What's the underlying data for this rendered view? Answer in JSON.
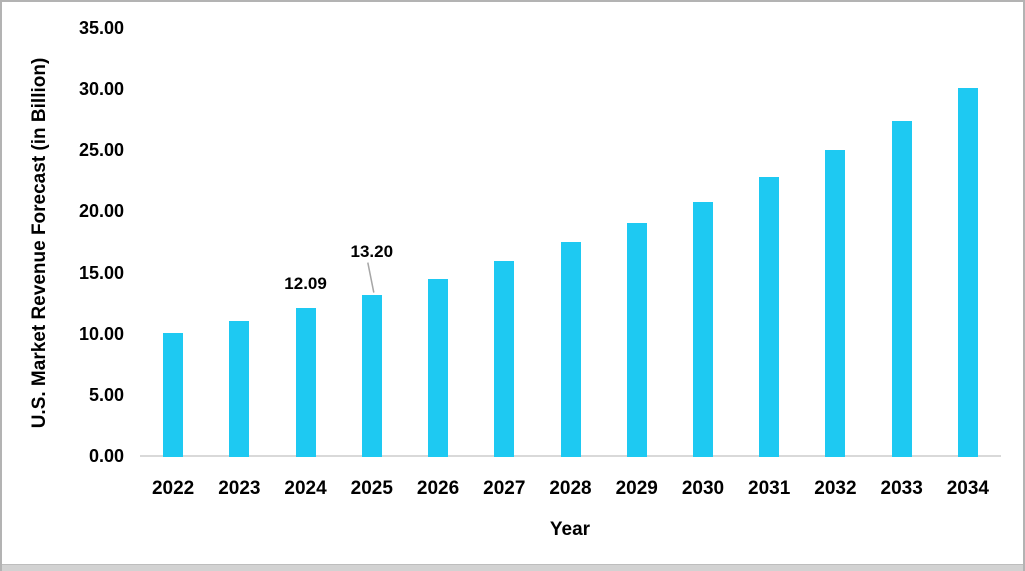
{
  "window": {
    "background": "#ffffff",
    "border_color": "#b3b3b3",
    "bottom_strip_color": "#d2d2d2"
  },
  "chart_data": {
    "type": "bar",
    "title": "",
    "xlabel": "Year",
    "ylabel": "U.S. Market Revenue Forecast (in Billion)",
    "categories": [
      "2022",
      "2023",
      "2024",
      "2025",
      "2026",
      "2027",
      "2028",
      "2029",
      "2030",
      "2031",
      "2032",
      "2033",
      "2034"
    ],
    "values": [
      10.07,
      11.04,
      12.09,
      13.2,
      14.46,
      15.93,
      17.46,
      19.02,
      20.76,
      22.79,
      25.0,
      27.37,
      30.1
    ],
    "data_labels": [
      {
        "category": "2024",
        "text": "12.09",
        "gap": 14,
        "leader": false
      },
      {
        "category": "2025",
        "text": "13.20",
        "gap": 33,
        "leader": true
      }
    ],
    "ylim": [
      0,
      35
    ],
    "ytick_step": 5,
    "ytick_labels": [
      "0.00",
      "5.00",
      "10.00",
      "15.00",
      "20.00",
      "25.00",
      "30.00",
      "35.00"
    ],
    "grid": false,
    "legend": false,
    "bar_color": "#1EC9F2",
    "axis_line_color": "#D9D9D9",
    "leader_line_color": "#A6A6A6",
    "text_color": "#000000"
  }
}
